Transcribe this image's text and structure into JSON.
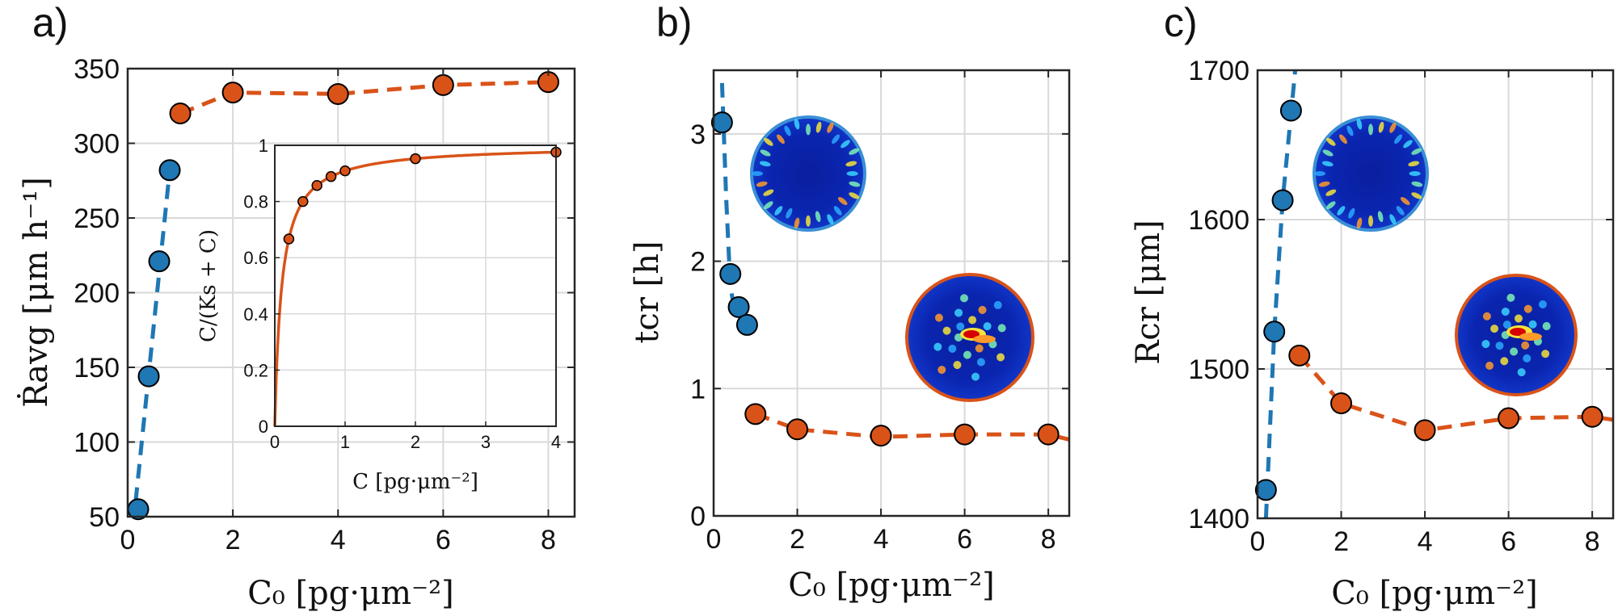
{
  "colors": {
    "blue": "#1f77b4",
    "orange": "#d95319",
    "grid": "#d9d9d9",
    "axis": "#262626"
  },
  "chart_data": [
    {
      "id": "a",
      "type": "scatter",
      "panel_label": "a)",
      "xlabel": "C₀ [pg·μm⁻²]",
      "ylabel": "Ṙavg [μm h⁻¹]",
      "xlim": [
        0,
        8.5
      ],
      "ylim": [
        50,
        350
      ],
      "xticks": [
        "0",
        "2",
        "4",
        "6",
        "8"
      ],
      "yticks": [
        "50",
        "100",
        "150",
        "200",
        "250",
        "300",
        "350"
      ],
      "grid": true,
      "series": [
        {
          "name": "blue",
          "x": [
            0.2,
            0.4,
            0.6,
            0.8
          ],
          "y": [
            55,
            144,
            221,
            282
          ],
          "fit": [
            [
              0.15,
              60
            ],
            [
              0.8,
              282
            ]
          ]
        },
        {
          "name": "orange",
          "x": [
            1,
            2,
            4,
            6,
            8
          ],
          "y": [
            320,
            334,
            333,
            339,
            341
          ],
          "fit": [
            [
              1,
              320
            ],
            [
              2,
              334
            ],
            [
              4,
              333
            ],
            [
              6,
              339
            ],
            [
              8,
              341
            ]
          ]
        }
      ],
      "inset": {
        "type": "line",
        "xlabel": "C [pg·μm⁻²]",
        "ylabel": "C/(Ks + C)",
        "xlim": [
          0,
          4
        ],
        "ylim": [
          0,
          1
        ],
        "xticks": [
          "0",
          "1",
          "2",
          "3",
          "4"
        ],
        "yticks": [
          "0",
          "0.2",
          "0.4",
          "0.6",
          "0.8",
          "1"
        ],
        "Ks": 0.1,
        "points_x": [
          0.2,
          0.4,
          0.6,
          0.8,
          1,
          2,
          4
        ]
      }
    },
    {
      "id": "b",
      "type": "scatter",
      "panel_label": "b)",
      "xlabel": "C₀ [pg·μm⁻²]",
      "ylabel": "tcr [h]",
      "xlim": [
        0,
        8.5
      ],
      "ylim": [
        0,
        3.5
      ],
      "xticks": [
        "0",
        "2",
        "4",
        "6",
        "8"
      ],
      "yticks": [
        "0",
        "1",
        "2",
        "3"
      ],
      "grid": true,
      "series": [
        {
          "name": "blue",
          "x": [
            0.2,
            0.4,
            0.6,
            0.8
          ],
          "y": [
            3.09,
            1.9,
            1.64,
            1.5
          ],
          "fit": [
            [
              0.2,
              3.4
            ],
            [
              0.3,
              2.5
            ],
            [
              0.4,
              1.8
            ],
            [
              0.5,
              1.62
            ]
          ]
        },
        {
          "name": "orange",
          "x": [
            1,
            2,
            4,
            6,
            8
          ],
          "y": [
            0.8,
            0.68,
            0.63,
            0.64,
            0.64
          ],
          "fit": [
            [
              1,
              0.8
            ],
            [
              2,
              0.68
            ],
            [
              4,
              0.62
            ],
            [
              6,
              0.64
            ],
            [
              8,
              0.64
            ],
            [
              8.5,
              0.6
            ]
          ]
        }
      ]
    },
    {
      "id": "c",
      "type": "scatter",
      "panel_label": "c)",
      "xlabel": "C₀ [pg·μm⁻²]",
      "ylabel": "Rcr [μm]",
      "xlim": [
        0,
        8.5
      ],
      "ylim": [
        1400,
        1700
      ],
      "xticks": [
        "0",
        "2",
        "4",
        "6",
        "8"
      ],
      "yticks": [
        "1400",
        "1500",
        "1600",
        "1700"
      ],
      "grid": true,
      "series": [
        {
          "name": "blue",
          "x": [
            0.2,
            0.4,
            0.6,
            0.8
          ],
          "y": [
            1419,
            1525,
            1613,
            1673
          ],
          "fit": [
            [
              0.2,
              1400
            ],
            [
              0.4,
              1525
            ],
            [
              0.6,
              1613
            ],
            [
              0.9,
              1700
            ]
          ]
        },
        {
          "name": "orange",
          "x": [
            1,
            2,
            4,
            6,
            8
          ],
          "y": [
            1509,
            1477,
            1459,
            1467,
            1468
          ],
          "fit": [
            [
              1,
              1509
            ],
            [
              2,
              1477
            ],
            [
              4,
              1459
            ],
            [
              6,
              1467
            ],
            [
              8,
              1468
            ],
            [
              8.5,
              1466
            ]
          ]
        }
      ]
    }
  ]
}
